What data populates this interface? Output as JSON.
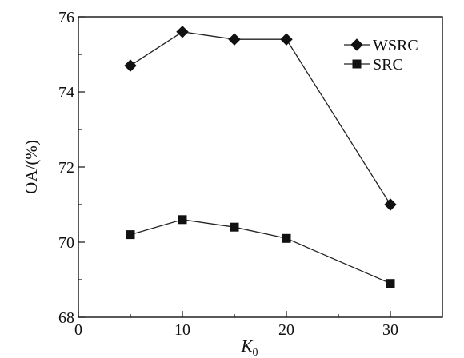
{
  "chart_data": {
    "type": "line",
    "title": "",
    "xlabel": "K",
    "xlabel_sub": "0",
    "ylabel": "OA/(%)",
    "xlim": [
      0,
      35
    ],
    "ylim": [
      68,
      76
    ],
    "x_ticks": [
      0,
      10,
      20,
      30
    ],
    "y_ticks": [
      68,
      70,
      72,
      74,
      76
    ],
    "x_minor_ticks": [
      5,
      15,
      25
    ],
    "y_minor_ticks": [
      69,
      71,
      73,
      75
    ],
    "grid": false,
    "legend_position": "top-right",
    "x": [
      5,
      10,
      15,
      20,
      30
    ],
    "series": [
      {
        "name": "WSRC",
        "marker": "diamond",
        "values": [
          74.7,
          75.6,
          75.4,
          75.4,
          71.0
        ]
      },
      {
        "name": "SRC",
        "marker": "square",
        "values": [
          70.2,
          70.6,
          70.4,
          70.1,
          68.9
        ]
      }
    ]
  }
}
